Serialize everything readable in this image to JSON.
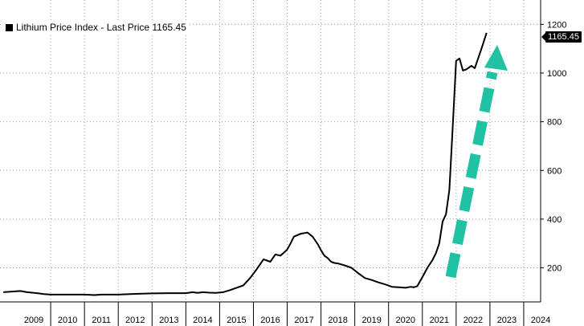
{
  "legend": {
    "label": "Lithium Price Index - Last Price 1165.45",
    "swatch_color": "#000000"
  },
  "last_price_tag": "1165.45",
  "arrow": {
    "color": "#20c2a3",
    "shape": "dashed-up-arrow"
  },
  "chart_data": {
    "type": "line",
    "title": "",
    "xlabel": "",
    "ylabel": "",
    "xlim": [
      2008.5,
      2024.5
    ],
    "ylim": [
      60,
      1300
    ],
    "yticks": [
      200,
      400,
      600,
      800,
      1000,
      1200
    ],
    "xticks": [
      "2009",
      "2010",
      "2011",
      "2012",
      "2013",
      "2014",
      "2015",
      "2016",
      "2017",
      "2018",
      "2019",
      "2020",
      "2021",
      "2022",
      "2023",
      "2024"
    ],
    "grid": true,
    "legend_position": "top-left",
    "series": [
      {
        "name": "Lithium Price Index - Last Price 1165.45",
        "color": "#000000",
        "x": [
          2008.6,
          2008.9,
          2009.1,
          2009.3,
          2009.6,
          2009.8,
          2010.0,
          2010.5,
          2011.0,
          2011.3,
          2011.5,
          2012.0,
          2012.5,
          2013.0,
          2013.5,
          2014.0,
          2014.2,
          2014.35,
          2014.5,
          2014.7,
          2014.9,
          2015.1,
          2015.3,
          2015.5,
          2015.7,
          2015.9,
          2016.1,
          2016.3,
          2016.5,
          2016.65,
          2016.8,
          2016.9,
          2017.0,
          2017.1,
          2017.2,
          2017.4,
          2017.6,
          2017.75,
          2017.9,
          2018.0,
          2018.1,
          2018.2,
          2018.3,
          2018.4,
          2018.5,
          2018.7,
          2018.9,
          2019.1,
          2019.3,
          2019.5,
          2019.7,
          2019.9,
          2020.1,
          2020.3,
          2020.5,
          2020.65,
          2020.75,
          2020.85,
          2021.0,
          2021.15,
          2021.3,
          2021.4,
          2021.5,
          2021.6,
          2021.7,
          2021.8,
          2021.9,
          2022.0,
          2022.1,
          2022.2,
          2022.3,
          2022.45,
          2022.55,
          2022.65,
          2022.75,
          2022.9
        ],
        "values": [
          100,
          103,
          105,
          100,
          96,
          92,
          90,
          90,
          90,
          88,
          90,
          90,
          93,
          95,
          96,
          96,
          100,
          97,
          100,
          98,
          97,
          100,
          108,
          118,
          128,
          158,
          195,
          235,
          225,
          255,
          250,
          262,
          275,
          300,
          328,
          340,
          345,
          328,
          298,
          272,
          250,
          240,
          225,
          220,
          218,
          210,
          200,
          178,
          158,
          150,
          140,
          132,
          122,
          120,
          118,
          122,
          120,
          125,
          162,
          200,
          232,
          260,
          300,
          390,
          420,
          520,
          780,
          1050,
          1060,
          1010,
          1015,
          1030,
          1020,
          1060,
          1100,
          1165
        ]
      }
    ]
  }
}
